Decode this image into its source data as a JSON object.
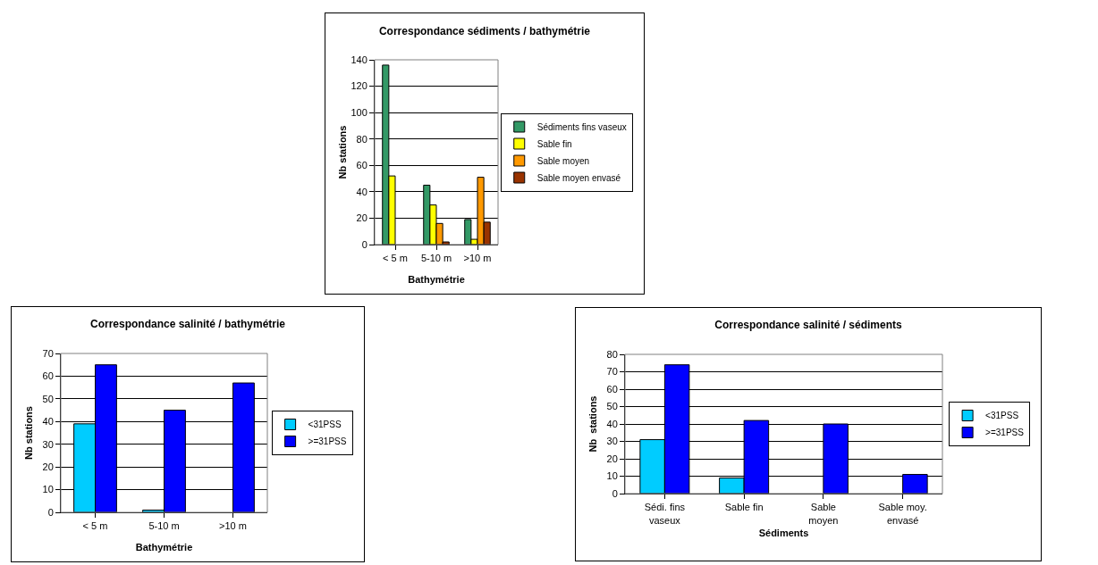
{
  "chart_data": [
    {
      "type": "bar",
      "title": "Correspondance sédiments / bathymétrie",
      "xlabel": "Bathymétrie",
      "ylabel": "Nb stations",
      "categories": [
        "< 5 m",
        "5-10 m",
        ">10 m"
      ],
      "series": [
        {
          "name": "Sédiments fins vaseux",
          "color": "#339966",
          "values": [
            136,
            45,
            19
          ]
        },
        {
          "name": "Sable fin",
          "color": "#ffff00",
          "values": [
            52,
            30,
            4
          ]
        },
        {
          "name": "Sable moyen",
          "color": "#ff9900",
          "values": [
            null,
            16,
            51
          ]
        },
        {
          "name": "Sable moyen envasé",
          "color": "#993300",
          "values": [
            null,
            2,
            17
          ]
        }
      ],
      "ylim": [
        0,
        140
      ],
      "yticks": [
        0,
        20,
        40,
        60,
        80,
        100,
        120,
        140
      ],
      "grid": "y",
      "legend": "right"
    },
    {
      "type": "bar",
      "title": "Correspondance salinité / bathymétrie",
      "xlabel": "Bathymétrie",
      "ylabel": "Nb stations",
      "categories": [
        "< 5 m",
        "5-10 m",
        ">10 m"
      ],
      "series": [
        {
          "name": "<31PSS",
          "color": "#00ccff",
          "values": [
            39,
            1,
            null
          ]
        },
        {
          "name": ">=31PSS",
          "color": "#0000ff",
          "values": [
            65,
            45,
            57
          ]
        }
      ],
      "ylim": [
        0,
        70
      ],
      "yticks": [
        0,
        10,
        20,
        30,
        40,
        50,
        60,
        70
      ],
      "grid": "y",
      "legend": "right"
    },
    {
      "type": "bar",
      "title": "Correspondance salinité / sédiments",
      "xlabel": "Sédiments",
      "ylabel": "Nb  stations",
      "categories": [
        "Sédi. fins\nvaseux",
        "Sable fin",
        "Sable\nmoyen",
        "Sable moy.\nenvasé"
      ],
      "series": [
        {
          "name": "<31PSS",
          "color": "#00ccff",
          "values": [
            31,
            9,
            null,
            null
          ]
        },
        {
          "name": ">=31PSS",
          "color": "#0000ff",
          "values": [
            74,
            42,
            40,
            11
          ]
        }
      ],
      "ylim": [
        0,
        80
      ],
      "yticks": [
        0,
        10,
        20,
        30,
        40,
        50,
        60,
        70,
        80
      ],
      "grid": "y",
      "legend": "right"
    }
  ]
}
